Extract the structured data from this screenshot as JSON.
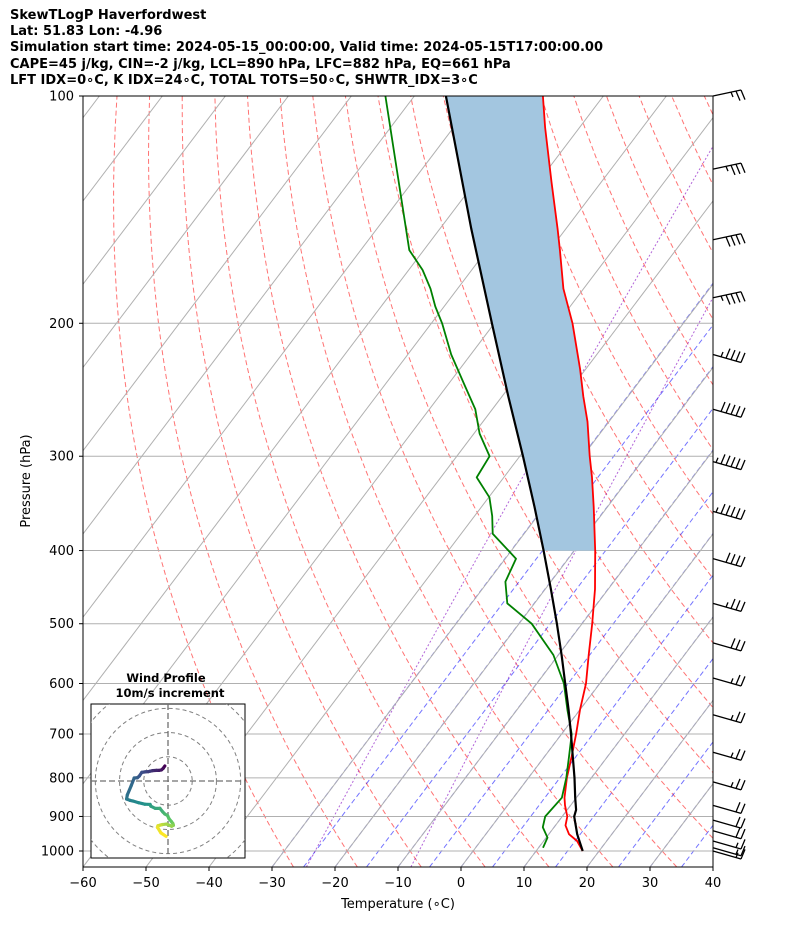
{
  "header": {
    "line1": "SkewTLogP Haverfordwest",
    "line2": "Lat: 51.83   Lon: -4.96",
    "line3": "Simulation start time: 2024-05-15_00:00:00, Valid time: 2024-05-15T17:00:00.00",
    "line4": "CAPE=45 j/kg, CIN=-2 j/kg, LCL=890 hPa, LFC=882 hPa, EQ=661 hPa",
    "line5": "LFT IDX=0∘C, K IDX=24∘C, TOTAL TOTS=50∘C, SHWTR_IDX=3∘C"
  },
  "chart_data": {
    "type": "line",
    "title": "SkewTLogP Haverfordwest",
    "xlabel": "Temperature (∘C)",
    "ylabel": "Pressure (hPa)",
    "xlim": [
      -60,
      40
    ],
    "ylim": [
      1050,
      100
    ],
    "y_scale": "log",
    "x_ticks": [
      "−60",
      "−50",
      "−40",
      "−30",
      "−20",
      "−10",
      "0",
      "10",
      "20",
      "30",
      "40"
    ],
    "y_ticks": [
      "1000",
      "900",
      "800",
      "700",
      "600",
      "500",
      "400",
      "300",
      "200",
      "100"
    ],
    "grid": true,
    "series": [
      {
        "kind": "temperature",
        "color": "#ff0000",
        "p": [
          1000,
          970,
          950,
          925,
          900,
          870,
          850,
          800,
          750,
          700,
          650,
          600,
          550,
          500,
          450,
          400,
          350,
          320,
          300,
          270,
          250,
          230,
          200,
          180,
          160,
          150,
          130,
          110,
          100
        ],
        "t": [
          17.4,
          15.3,
          13.2,
          11.6,
          10.8,
          9.1,
          8.1,
          6.1,
          4.3,
          2.3,
          0.0,
          -2.2,
          -5.2,
          -8.4,
          -12.1,
          -16.7,
          -22.2,
          -26.0,
          -28.9,
          -33.4,
          -37.1,
          -40.9,
          -47.6,
          -53.2,
          -58.4,
          -61.3,
          -67.9,
          -75.5,
          -79.6
        ]
      },
      {
        "kind": "dewpoint",
        "color": "#008000",
        "p": [
          990,
          960,
          930,
          900,
          850,
          800,
          750,
          700,
          650,
          600,
          550,
          500,
          470,
          440,
          410,
          380,
          360,
          340,
          320,
          300,
          280,
          260,
          240,
          220,
          200,
          190,
          180,
          170,
          160,
          100
        ],
        "td": [
          10.7,
          10.2,
          8.2,
          7.3,
          7.7,
          6.0,
          3.9,
          1.6,
          -2.0,
          -5.7,
          -10.8,
          -18.0,
          -24.3,
          -27.2,
          -28.3,
          -35.0,
          -37.2,
          -39.9,
          -44.3,
          -44.8,
          -49.1,
          -52.7,
          -57.7,
          -63.1,
          -68.3,
          -71.4,
          -74.3,
          -77.8,
          -82.3,
          -104.6
        ]
      },
      {
        "kind": "parcel",
        "color": "#000000",
        "p": [
          1000,
          950,
          900,
          882,
          850,
          800,
          750,
          700,
          650,
          600,
          550,
          500,
          450,
          400,
          350,
          300,
          250,
          200,
          150,
          100
        ],
        "t": [
          17.4,
          14.5,
          11.9,
          11.4,
          9.8,
          7.3,
          4.5,
          1.5,
          -1.8,
          -5.5,
          -9.5,
          -14.0,
          -19.1,
          -24.9,
          -31.6,
          -39.5,
          -49.0,
          -60.4,
          -75.0,
          -95.0
        ]
      }
    ],
    "shading": {
      "label": "CAPE",
      "color": "#a3c6e0",
      "p_range": [
        100,
        400
      ]
    },
    "wind_barbs": {
      "p": [
        100,
        125,
        155,
        185,
        220,
        260,
        305,
        355,
        410,
        470,
        530,
        590,
        660,
        740,
        810,
        870,
        910,
        940,
        970,
        990,
        1000
      ],
      "speed_kt": [
        25,
        35,
        40,
        45,
        45,
        50,
        55,
        55,
        40,
        35,
        30,
        25,
        25,
        25,
        25,
        20,
        20,
        20,
        15,
        15,
        15
      ]
    },
    "hodograph": {
      "title": "Wind Profile",
      "subtitle": "10m/s increment",
      "u": [
        -1.3,
        -2.0,
        -2.7,
        -3.7,
        -4.7,
        -6.3,
        -7.3,
        -8.0,
        -9.3,
        -10.7,
        -11.7,
        -12.5,
        -13.8,
        -15.0,
        -16.6,
        -16.9,
        -15.6,
        -14.3,
        -12.0,
        -9.5,
        -7.3,
        -7.0,
        -5.2,
        -3.3,
        -2.1,
        -1.3,
        -0.2,
        0.4,
        1.4,
        2.0,
        2.2,
        1.5,
        -0.6,
        -2.3,
        -3.1,
        -4.1,
        -4.3,
        -2.9,
        -0.8
      ],
      "v": [
        -10.2,
        -11.2,
        -11.8,
        -12.0,
        -12.0,
        -12.1,
        -12.3,
        -12.5,
        -12.6,
        -12.8,
        -14.3,
        -15.0,
        -15.1,
        -18.2,
        -22.0,
        -23.7,
        -24.2,
        -24.5,
        -25.2,
        -25.8,
        -25.9,
        -26.6,
        -27.5,
        -27.5,
        -29.0,
        -29.8,
        -30.4,
        -31.7,
        -32.9,
        -33.7,
        -34.4,
        -34.8,
        -33.9,
        -34.1,
        -34.3,
        -34.6,
        -35.2,
        -37.5,
        -38.9
      ]
    }
  }
}
